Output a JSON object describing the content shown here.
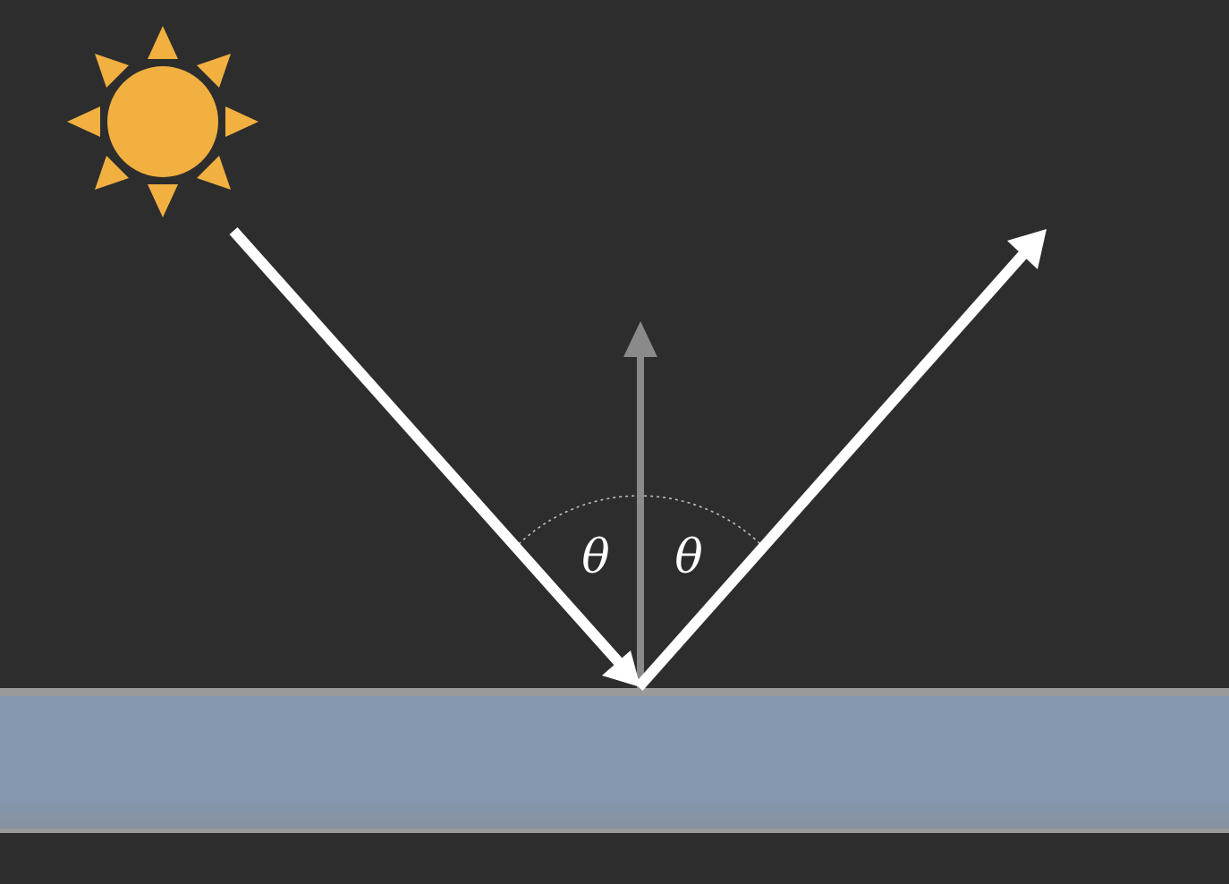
{
  "colors": {
    "background": "#2d2d2d",
    "sun": "#f2b040",
    "ray": "#ffffff",
    "normal": "#8a8a8a",
    "surface": "#8598b0",
    "surface_edge": "#9a9a9a",
    "arc": "#bdbdbd"
  },
  "icons": {
    "light_source": "sun-icon"
  },
  "labels": {
    "incidence_angle": "θ",
    "reflection_angle": "θ"
  }
}
